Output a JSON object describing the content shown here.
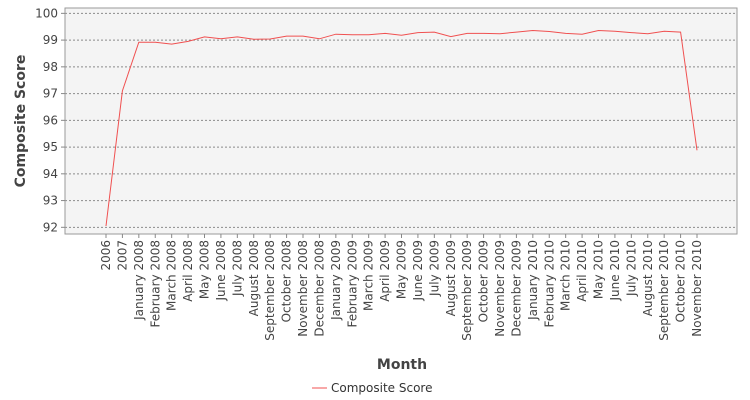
{
  "chart_data": {
    "type": "line",
    "title": "",
    "xlabel": "Month",
    "ylabel": "Composite Score",
    "ylim": [
      91.75,
      100.2
    ],
    "yticks": [
      92,
      93,
      94,
      95,
      96,
      97,
      98,
      99,
      100
    ],
    "grid": true,
    "legend_position": "bottom",
    "categories": [
      "2006",
      "2007",
      "January 2008",
      "February 2008",
      "March 2008",
      "April 2008",
      "May 2008",
      "June 2008",
      "July 2008",
      "August 2008",
      "September 2008",
      "October 2008",
      "November 2008",
      "December 2008",
      "January 2009",
      "February 2009",
      "March 2009",
      "April 2009",
      "May 2009",
      "June 2009",
      "July 2009",
      "August 2009",
      "September 2009",
      "October 2009",
      "November 2009",
      "December 2009",
      "January 2010",
      "February 2010",
      "March 2010",
      "April 2010",
      "May 2010",
      "June 2010",
      "July 2010",
      "August 2010",
      "September 2010",
      "October 2010",
      "November 2010"
    ],
    "series": [
      {
        "name": "Composite Score",
        "color": "#f05050",
        "values": [
          92.05,
          97.1,
          98.92,
          98.92,
          98.85,
          98.95,
          99.12,
          99.05,
          99.12,
          99.03,
          99.04,
          99.15,
          99.15,
          99.05,
          99.22,
          99.2,
          99.2,
          99.25,
          99.18,
          99.28,
          99.3,
          99.13,
          99.25,
          99.25,
          99.24,
          99.3,
          99.36,
          99.32,
          99.25,
          99.22,
          99.36,
          99.33,
          99.28,
          99.24,
          99.33,
          99.3,
          94.88
        ]
      }
    ]
  }
}
